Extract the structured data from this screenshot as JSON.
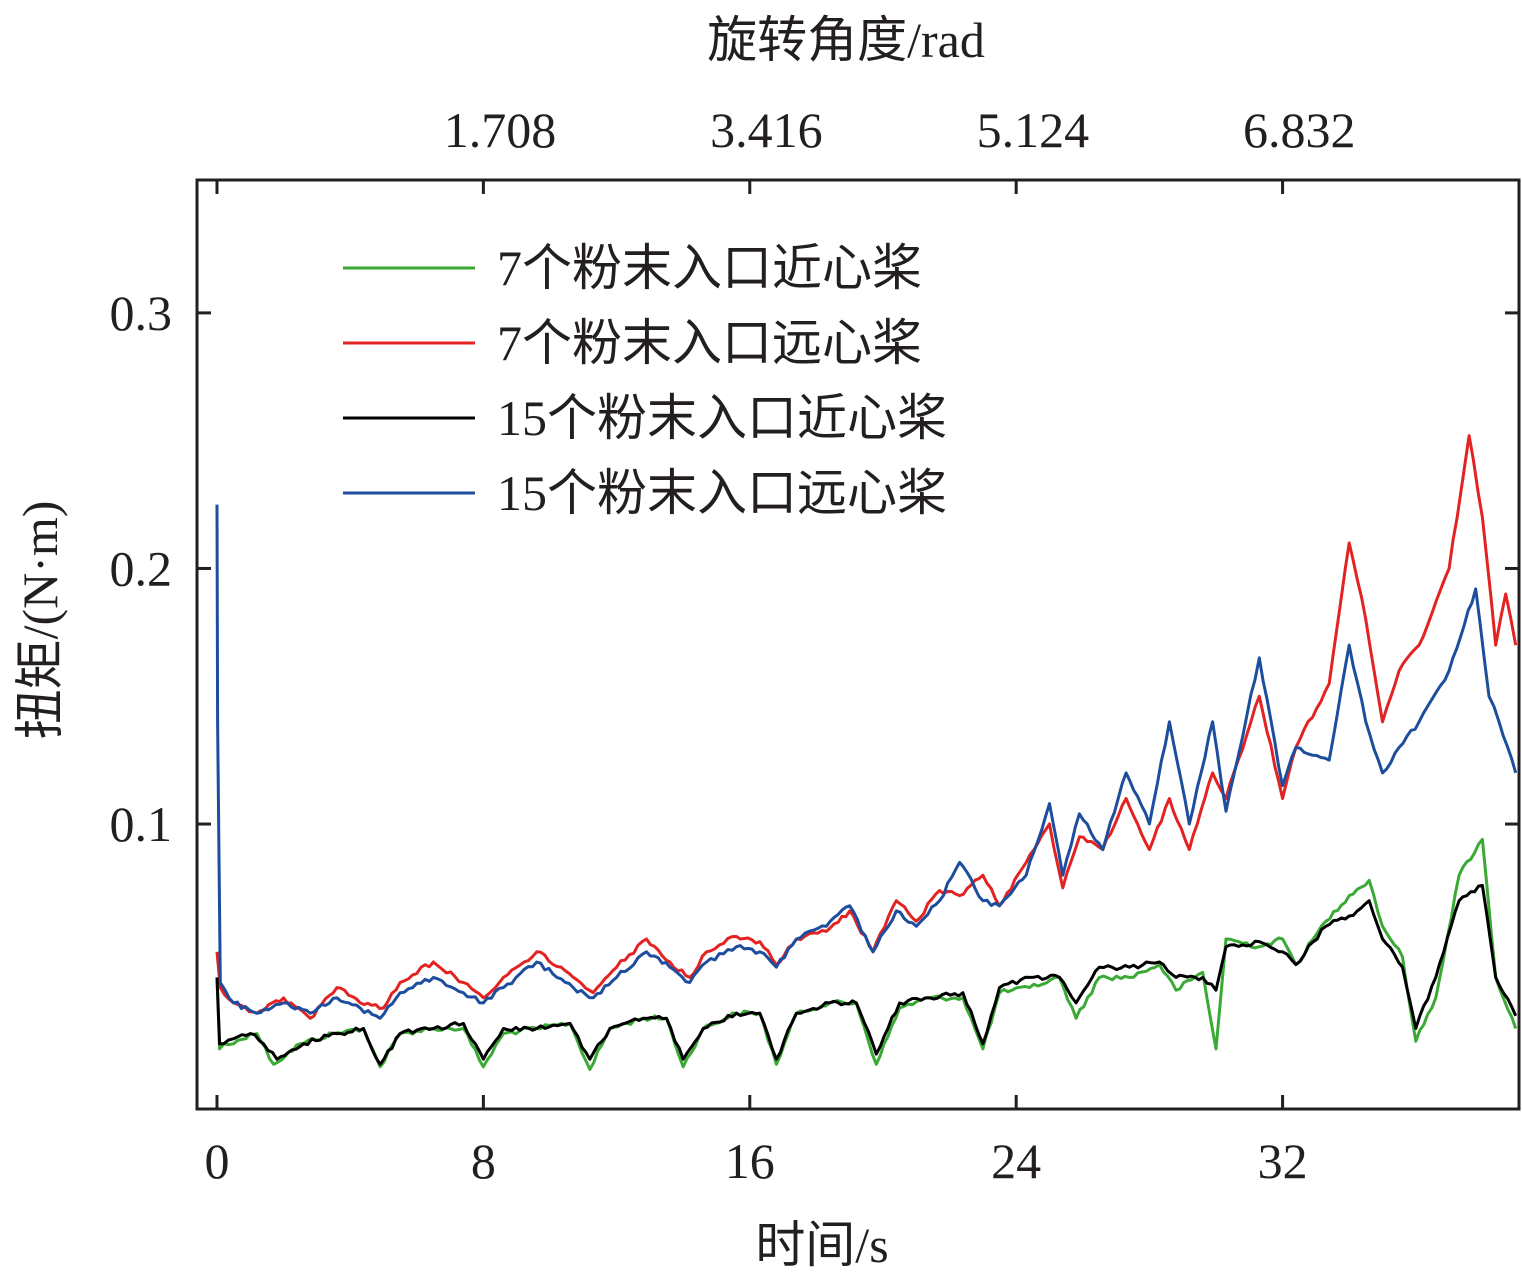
{
  "chart_data": {
    "type": "line",
    "xlabel": "时间/s",
    "ylabel": "扭矩/(N·m)",
    "top_xlabel": "旋转角度/rad",
    "xlim": [
      -0.6,
      39.1
    ],
    "ylim": [
      -0.0115,
      0.352
    ],
    "xticks": [
      0,
      8,
      16,
      24,
      32
    ],
    "xtick_labels": [
      "0",
      "8",
      "16",
      "24",
      "32"
    ],
    "yticks": [
      0.1,
      0.2,
      0.3
    ],
    "ytick_labels": [
      "0.1",
      "0.2",
      "0.3"
    ],
    "top_xticks": [
      8.5,
      16.5,
      24.5,
      32.5
    ],
    "top_xtick_labels": [
      "1.708",
      "3.416",
      "5.124",
      "6.832"
    ],
    "grid": false,
    "legend_position": "top-left",
    "series": [
      {
        "name": "7个粉末入口近心桨",
        "color": "#3aaa35",
        "x": [
          0,
          0.08,
          0.2,
          0.5,
          1.0,
          1.2,
          1.7,
          2.5,
          3.5,
          4.4,
          4.9,
          5.5,
          6.5,
          7.4,
          8.0,
          8.6,
          9.6,
          10.6,
          11.2,
          11.8,
          12.8,
          13.5,
          14.0,
          14.6,
          15.6,
          16.3,
          16.8,
          17.4,
          18.4,
          19.2,
          19.8,
          20.5,
          21.4,
          22.4,
          23.0,
          23.5,
          24.4,
          25.3,
          25.8,
          26.5,
          27.4,
          28.3,
          28.8,
          29.6,
          30.0,
          30.3,
          31.3,
          32.0,
          32.4,
          33.3,
          34.0,
          34.6,
          35.0,
          35.6,
          36.0,
          36.6,
          37.3,
          38.0,
          38.4,
          39.0
        ],
        "y": [
          0.04,
          0.012,
          0.014,
          0.014,
          0.018,
          0.018,
          0.006,
          0.014,
          0.018,
          0.02,
          0.005,
          0.018,
          0.02,
          0.02,
          0.005,
          0.018,
          0.02,
          0.022,
          0.004,
          0.02,
          0.024,
          0.024,
          0.005,
          0.02,
          0.026,
          0.026,
          0.006,
          0.026,
          0.03,
          0.03,
          0.006,
          0.028,
          0.032,
          0.032,
          0.012,
          0.034,
          0.036,
          0.04,
          0.024,
          0.04,
          0.04,
          0.045,
          0.035,
          0.042,
          0.012,
          0.055,
          0.052,
          0.055,
          0.045,
          0.062,
          0.072,
          0.078,
          0.06,
          0.048,
          0.015,
          0.032,
          0.08,
          0.094,
          0.04,
          0.02
        ]
      },
      {
        "name": "7个粉末入口远心桨",
        "color": "#e32322",
        "x": [
          0,
          0.1,
          0.5,
          1.2,
          2.0,
          2.8,
          3.6,
          4.3,
          5.0,
          5.5,
          6.5,
          7.4,
          8.0,
          8.6,
          9.6,
          10.7,
          11.3,
          12.0,
          12.9,
          13.6,
          14.2,
          14.7,
          15.6,
          16.3,
          16.8,
          17.4,
          18.3,
          19.0,
          19.7,
          20.4,
          21.0,
          21.7,
          22.3,
          23.0,
          23.5,
          24.3,
          25.0,
          25.4,
          25.9,
          26.6,
          27.3,
          28.0,
          28.6,
          29.2,
          29.9,
          30.3,
          31.3,
          32.0,
          32.4,
          33.4,
          34.0,
          34.5,
          35.0,
          35.5,
          36.1,
          37.0,
          37.6,
          38.0,
          38.4,
          38.7,
          39.0
        ],
        "y": [
          0.05,
          0.036,
          0.03,
          0.026,
          0.032,
          0.024,
          0.036,
          0.03,
          0.028,
          0.038,
          0.046,
          0.038,
          0.032,
          0.04,
          0.05,
          0.04,
          0.034,
          0.044,
          0.055,
          0.046,
          0.04,
          0.05,
          0.056,
          0.054,
          0.045,
          0.055,
          0.058,
          0.066,
          0.05,
          0.07,
          0.062,
          0.074,
          0.072,
          0.08,
          0.068,
          0.085,
          0.1,
          0.075,
          0.095,
          0.09,
          0.11,
          0.09,
          0.11,
          0.09,
          0.12,
          0.11,
          0.15,
          0.11,
          0.13,
          0.155,
          0.21,
          0.18,
          0.14,
          0.16,
          0.17,
          0.2,
          0.252,
          0.22,
          0.17,
          0.19,
          0.17
        ]
      },
      {
        "name": "15个粉末入口近心桨",
        "color": "#000000",
        "x": [
          0,
          0.08,
          0.2,
          0.5,
          1.0,
          1.4,
          1.8,
          2.6,
          3.6,
          4.4,
          4.9,
          5.5,
          6.5,
          7.4,
          8.0,
          8.6,
          9.6,
          10.6,
          11.2,
          11.8,
          12.8,
          13.5,
          14.0,
          14.6,
          15.6,
          16.3,
          16.8,
          17.4,
          18.4,
          19.2,
          19.8,
          20.5,
          21.4,
          22.4,
          23.0,
          23.5,
          24.4,
          25.3,
          25.8,
          26.5,
          27.4,
          28.3,
          28.8,
          29.6,
          30.0,
          30.3,
          31.3,
          32.0,
          32.4,
          33.3,
          34.0,
          34.6,
          35.0,
          35.6,
          36.0,
          36.6,
          37.3,
          38.0,
          38.4,
          39.0
        ],
        "y": [
          0.04,
          0.014,
          0.014,
          0.016,
          0.018,
          0.014,
          0.008,
          0.014,
          0.018,
          0.02,
          0.006,
          0.018,
          0.02,
          0.022,
          0.008,
          0.02,
          0.02,
          0.022,
          0.008,
          0.02,
          0.024,
          0.024,
          0.008,
          0.02,
          0.026,
          0.026,
          0.008,
          0.026,
          0.03,
          0.03,
          0.01,
          0.03,
          0.032,
          0.034,
          0.014,
          0.036,
          0.04,
          0.04,
          0.03,
          0.044,
          0.044,
          0.046,
          0.04,
          0.04,
          0.035,
          0.052,
          0.054,
          0.05,
          0.045,
          0.06,
          0.064,
          0.07,
          0.055,
          0.044,
          0.02,
          0.04,
          0.07,
          0.076,
          0.04,
          0.025
        ]
      },
      {
        "name": "15个粉末入口远心桨",
        "color": "#1d4e9e",
        "x": [
          0,
          0.02,
          0.1,
          0.5,
          1.2,
          2.0,
          2.8,
          3.6,
          4.3,
          4.9,
          5.5,
          6.5,
          7.4,
          8.0,
          8.6,
          9.6,
          10.7,
          11.3,
          12.0,
          12.9,
          13.6,
          14.2,
          14.7,
          15.6,
          16.3,
          16.8,
          17.4,
          18.3,
          19.0,
          19.7,
          20.4,
          21.0,
          21.7,
          22.3,
          23.0,
          23.5,
          24.3,
          25.0,
          25.4,
          25.9,
          26.6,
          27.3,
          28.0,
          28.6,
          29.2,
          29.9,
          30.3,
          31.3,
          32.0,
          32.4,
          33.4,
          34.0,
          34.5,
          35.0,
          35.5,
          36.1,
          37.0,
          37.8,
          38.2,
          38.5,
          39.0
        ],
        "y": [
          0.225,
          0.14,
          0.038,
          0.03,
          0.026,
          0.03,
          0.026,
          0.032,
          0.028,
          0.024,
          0.034,
          0.04,
          0.034,
          0.03,
          0.036,
          0.046,
          0.036,
          0.032,
          0.04,
          0.05,
          0.044,
          0.038,
          0.046,
          0.052,
          0.05,
          0.044,
          0.055,
          0.06,
          0.068,
          0.05,
          0.066,
          0.06,
          0.07,
          0.085,
          0.07,
          0.068,
          0.08,
          0.108,
          0.08,
          0.104,
          0.09,
          0.12,
          0.1,
          0.14,
          0.1,
          0.14,
          0.105,
          0.165,
          0.115,
          0.13,
          0.125,
          0.17,
          0.14,
          0.12,
          0.13,
          0.14,
          0.16,
          0.192,
          0.15,
          0.14,
          0.12
        ]
      }
    ]
  }
}
